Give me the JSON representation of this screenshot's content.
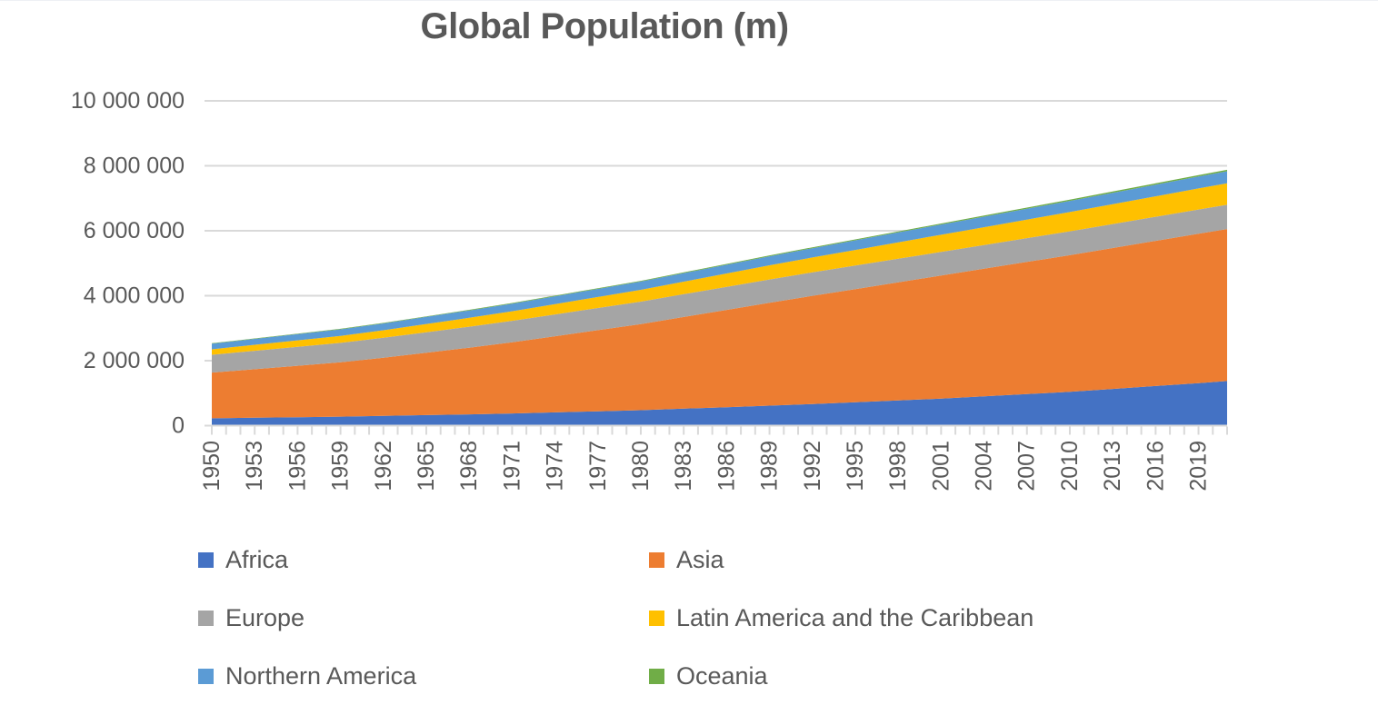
{
  "chart_data": {
    "type": "area",
    "stacked": true,
    "title": "Global Population (m)",
    "xlabel": "",
    "ylabel": "",
    "ylim": [
      0,
      10000000
    ],
    "grid": {
      "horizontal": true,
      "color": "#D9D9D9"
    },
    "text_color": "#595959",
    "legend_position": "bottom",
    "legend_columns": 2,
    "y_ticks": {
      "values": [
        0,
        2000000,
        4000000,
        6000000,
        8000000,
        10000000
      ],
      "labels": [
        "0",
        "2 000 000",
        "4 000 000",
        "6 000 000",
        "8 000 000",
        "10 000 000"
      ]
    },
    "x_tick_labels": [
      "1950",
      "1953",
      "1956",
      "1959",
      "1962",
      "1965",
      "1968",
      "1971",
      "1974",
      "1977",
      "1980",
      "1983",
      "1986",
      "1989",
      "1992",
      "1995",
      "1998",
      "2001",
      "2004",
      "2007",
      "2010",
      "2013",
      "2016",
      "2019"
    ],
    "x_minor_tick_interval_years": 1,
    "x_range_years": [
      1950,
      2021
    ],
    "x": [
      1950,
      1953,
      1956,
      1959,
      1962,
      1965,
      1968,
      1971,
      1974,
      1977,
      1980,
      1983,
      1986,
      1989,
      1992,
      1995,
      1998,
      2001,
      2004,
      2007,
      2010,
      2013,
      2016,
      2019,
      2021
    ],
    "series": [
      {
        "name": "Africa",
        "color": "#4472C4",
        "values": [
          227794,
          244464,
          261134,
          277803,
          299377,
          323404,
          347430,
          374741,
          408623,
          442504,
          476386,
          522681,
          568977,
          615272,
          666760,
          720844,
          774928,
          833816,
          902312,
          970808,
          1039304,
          1129692,
          1220080,
          1310469,
          1373486
        ]
      },
      {
        "name": "Asia",
        "color": "#ED7D31",
        "values": [
          1404909,
          1493577,
          1582246,
          1670914,
          1788800,
          1921296,
          2053791,
          2192867,
          2345104,
          2497341,
          2649578,
          2822534,
          2995490,
          3168447,
          3329132,
          3483681,
          3638230,
          3788096,
          3928595,
          4069095,
          4209594,
          4339032,
          4468471,
          4597909,
          4679661
        ]
      },
      {
        "name": "Europe",
        "color": "#A5A5A5",
        "values": [
          549329,
          566152,
          582976,
          599799,
          615631,
          630968,
          646305,
          660233,
          671344,
          682455,
          693566,
          701754,
          709941,
          718129,
          721798,
          723208,
          724618,
          726564,
          729580,
          732597,
          735613,
          739220,
          742827,
          746434,
          748000
        ]
      },
      {
        "name": "Latin America and the Caribbean",
        "color": "#FFC000",
        "values": [
          168821,
          184295,
          199770,
          215244,
          233733,
          253729,
          273724,
          294514,
          316891,
          339268,
          361645,
          386004,
          410362,
          434721,
          458639,
          482338,
          506037,
          528787,
          549641,
          570495,
          591349,
          610133,
          628917,
          647701,
          660000
        ]
      },
      {
        "name": "Northern America",
        "color": "#5B9BD5",
        "values": [
          172603,
          182217,
          191831,
          201445,
          209896,
          217767,
          225638,
          233241,
          240309,
          247378,
          254446,
          262142,
          269837,
          277533,
          286563,
          296262,
          305960,
          315512,
          324772,
          334033,
          343293,
          350966,
          358639,
          366312,
          371000
        ]
      },
      {
        "name": "Oceania",
        "color": "#70AD47",
        "values": [
          12976,
          13829,
          14682,
          15535,
          16593,
          17754,
          18915,
          20018,
          21006,
          21993,
          22981,
          24210,
          25440,
          26669,
          27908,
          29151,
          30393,
          31766,
          33397,
          35028,
          36659,
          38465,
          40270,
          42076,
          43500
        ]
      }
    ]
  }
}
